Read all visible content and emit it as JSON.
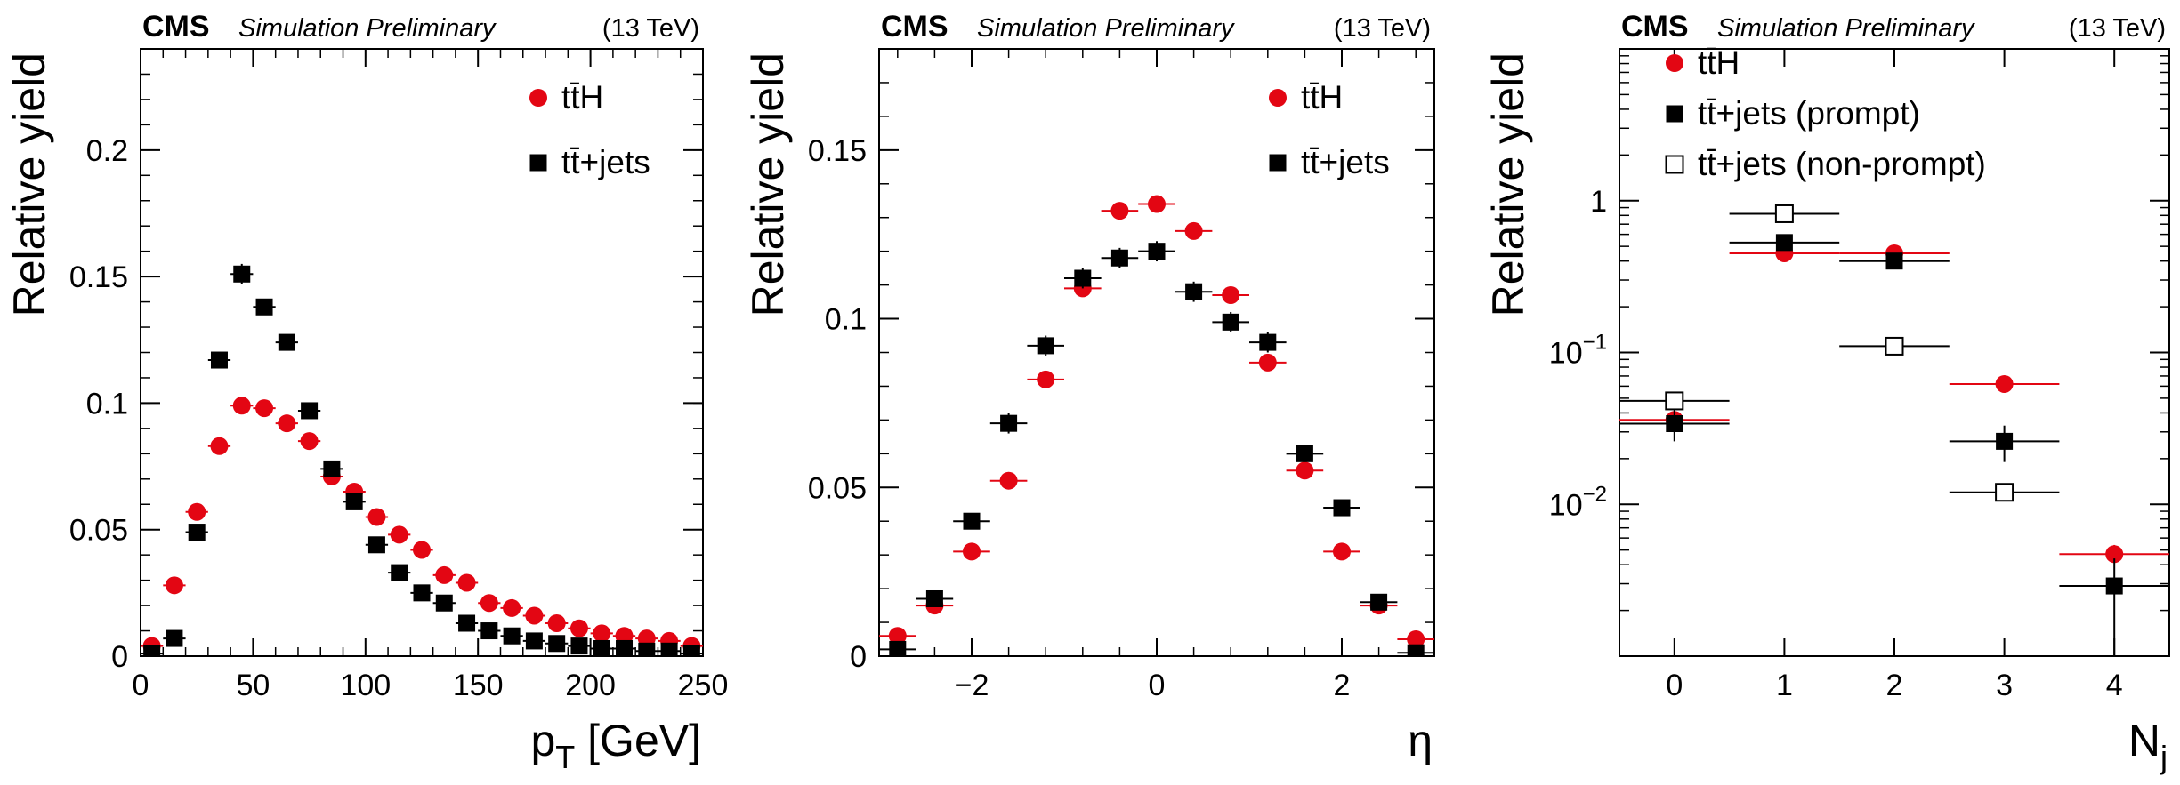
{
  "header": {
    "experiment": "CMS",
    "status": "Simulation Preliminary",
    "energy": "(13 TeV)"
  },
  "colors": {
    "tth": "#e30613",
    "ttjets": "#000000"
  },
  "chart_data": [
    {
      "type": "scatter",
      "id": "pt",
      "title": "",
      "xlabel": "p",
      "xlabel_sub": "T",
      "xlabel_suffix": " [GeV]",
      "ylabel": "Relative yield",
      "xlim": [
        0,
        250
      ],
      "ylim": [
        0,
        0.24
      ],
      "x_ticks": [
        0,
        50,
        100,
        150,
        200,
        250
      ],
      "x_tick_labels": [
        "0",
        "50",
        "100",
        "150",
        "200",
        "250"
      ],
      "y_ticks": [
        0,
        0.05,
        0.1,
        0.15,
        0.2
      ],
      "y_tick_labels": [
        "0",
        "0.05",
        "0.1",
        "0.15",
        "0.2"
      ],
      "log_y": false,
      "legend_position": "top-right",
      "series": [
        {
          "name": "tt̄H",
          "marker": "circle",
          "color": "#e30613",
          "x": [
            5,
            15,
            25,
            35,
            45,
            55,
            65,
            75,
            85,
            95,
            105,
            115,
            125,
            135,
            145,
            155,
            165,
            175,
            185,
            195,
            205,
            215,
            225,
            235,
            245
          ],
          "xerr": [
            5,
            5,
            5,
            5,
            5,
            5,
            5,
            5,
            5,
            5,
            5,
            5,
            5,
            5,
            5,
            5,
            5,
            5,
            5,
            5,
            5,
            5,
            5,
            5,
            5
          ],
          "y": [
            0.004,
            0.028,
            0.057,
            0.083,
            0.099,
            0.098,
            0.092,
            0.085,
            0.071,
            0.065,
            0.055,
            0.048,
            0.042,
            0.032,
            0.029,
            0.021,
            0.019,
            0.016,
            0.013,
            0.011,
            0.009,
            0.008,
            0.007,
            0.006,
            0.004
          ],
          "yerr": [
            0.0005,
            0.001,
            0.001,
            0.001,
            0.001,
            0.001,
            0.001,
            0.001,
            0.001,
            0.001,
            0.001,
            0.001,
            0.001,
            0.001,
            0.001,
            0.001,
            0.001,
            0.001,
            0.001,
            0.001,
            0.001,
            0.001,
            0.001,
            0.001,
            0.001
          ]
        },
        {
          "name": "tt̄+jets",
          "marker": "square",
          "color": "#000000",
          "x": [
            5,
            15,
            25,
            35,
            45,
            55,
            65,
            75,
            85,
            95,
            105,
            115,
            125,
            135,
            145,
            155,
            165,
            175,
            185,
            195,
            205,
            215,
            225,
            235,
            245
          ],
          "xerr": [
            5,
            5,
            5,
            5,
            5,
            5,
            5,
            5,
            5,
            5,
            5,
            5,
            5,
            5,
            5,
            5,
            5,
            5,
            5,
            5,
            5,
            5,
            5,
            5,
            5
          ],
          "y": [
            0.001,
            0.007,
            0.049,
            0.117,
            0.151,
            0.138,
            0.124,
            0.097,
            0.074,
            0.061,
            0.044,
            0.033,
            0.025,
            0.021,
            0.013,
            0.01,
            0.008,
            0.006,
            0.005,
            0.004,
            0.003,
            0.003,
            0.002,
            0.002,
            0.001
          ],
          "yerr": [
            0.001,
            0.002,
            0.003,
            0.003,
            0.004,
            0.003,
            0.003,
            0.003,
            0.003,
            0.003,
            0.002,
            0.002,
            0.002,
            0.002,
            0.001,
            0.001,
            0.001,
            0.001,
            0.001,
            0.001,
            0.001,
            0.001,
            0.001,
            0.001,
            0.001
          ]
        }
      ]
    },
    {
      "type": "scatter",
      "id": "eta",
      "title": "",
      "xlabel": "η",
      "ylabel": "Relative yield",
      "xlim": [
        -3,
        3
      ],
      "ylim": [
        0,
        0.18
      ],
      "x_ticks": [
        -2,
        0,
        2
      ],
      "x_tick_labels": [
        "−2",
        "0",
        "2"
      ],
      "y_ticks": [
        0,
        0.05,
        0.1,
        0.15
      ],
      "y_tick_labels": [
        "0",
        "0.05",
        "0.1",
        "0.15"
      ],
      "log_y": false,
      "legend_position": "top-right",
      "series": [
        {
          "name": "tt̄H",
          "marker": "circle",
          "color": "#e30613",
          "x": [
            -2.8,
            -2.4,
            -2.0,
            -1.6,
            -1.2,
            -0.8,
            -0.4,
            0.0,
            0.4,
            0.8,
            1.2,
            1.6,
            2.0,
            2.4,
            2.8
          ],
          "xerr": [
            0.2,
            0.2,
            0.2,
            0.2,
            0.2,
            0.2,
            0.2,
            0.2,
            0.2,
            0.2,
            0.2,
            0.2,
            0.2,
            0.2,
            0.2
          ],
          "y": [
            0.006,
            0.015,
            0.031,
            0.052,
            0.082,
            0.109,
            0.132,
            0.134,
            0.126,
            0.107,
            0.087,
            0.055,
            0.031,
            0.015,
            0.005
          ],
          "yerr": [
            0.001,
            0.001,
            0.001,
            0.001,
            0.001,
            0.001,
            0.002,
            0.002,
            0.002,
            0.001,
            0.001,
            0.001,
            0.001,
            0.001,
            0.001
          ]
        },
        {
          "name": "tt̄+jets",
          "marker": "square",
          "color": "#000000",
          "x": [
            -2.8,
            -2.4,
            -2.0,
            -1.6,
            -1.2,
            -0.8,
            -0.4,
            0.0,
            0.4,
            0.8,
            1.2,
            1.6,
            2.0,
            2.4,
            2.8
          ],
          "xerr": [
            0.2,
            0.2,
            0.2,
            0.2,
            0.2,
            0.2,
            0.2,
            0.2,
            0.2,
            0.2,
            0.2,
            0.2,
            0.2,
            0.2,
            0.2
          ],
          "y": [
            0.002,
            0.017,
            0.04,
            0.069,
            0.092,
            0.112,
            0.118,
            0.12,
            0.108,
            0.099,
            0.093,
            0.06,
            0.044,
            0.016,
            0.001
          ],
          "yerr": [
            0.001,
            0.002,
            0.002,
            0.003,
            0.003,
            0.003,
            0.003,
            0.003,
            0.003,
            0.003,
            0.003,
            0.002,
            0.002,
            0.002,
            0.001
          ]
        }
      ]
    },
    {
      "type": "scatter",
      "id": "nj",
      "title": "",
      "xlabel": "N",
      "xlabel_sub": "j",
      "xlabel_suffix": "",
      "ylabel": "Relative yield",
      "xlim": [
        -0.5,
        4.5
      ],
      "ylim": [
        0.001,
        10
      ],
      "x_ticks": [
        0,
        1,
        2,
        3,
        4
      ],
      "x_tick_labels": [
        "0",
        "1",
        "2",
        "3",
        "4"
      ],
      "y_ticks": [
        0.01,
        0.1,
        1
      ],
      "y_tick_labels": [
        {
          "base": "10",
          "exp": "−2"
        },
        {
          "base": "10",
          "exp": "−1"
        },
        {
          "base": "1",
          "exp": ""
        }
      ],
      "log_y": true,
      "legend_position": "top-right",
      "series": [
        {
          "name": "tt̄H",
          "marker": "circle",
          "color": "#e30613",
          "x": [
            0,
            1,
            2,
            3,
            4
          ],
          "xerr": [
            0.5,
            0.5,
            0.5,
            0.5,
            0.5
          ],
          "y": [
            0.036,
            0.45,
            0.45,
            0.062,
            0.0047
          ],
          "yerr_low": [
            0.002,
            0.01,
            0.01,
            0.002,
            0.0005
          ],
          "yerr_high": [
            0.002,
            0.01,
            0.01,
            0.002,
            0.0007
          ]
        },
        {
          "name": "tt̄+jets (prompt)",
          "marker": "square",
          "color": "#000000",
          "x": [
            0,
            1,
            2,
            3,
            4
          ],
          "xerr": [
            0.5,
            0.5,
            0.5,
            0.5,
            0.5
          ],
          "y": [
            0.034,
            0.53,
            0.4,
            0.026,
            0.0029
          ],
          "yerr_low": [
            0.008,
            0.03,
            0.02,
            0.007,
            0.0028
          ],
          "yerr_high": [
            0.008,
            0.03,
            0.02,
            0.007,
            0.0015
          ]
        },
        {
          "name": "tt̄+jets (non-prompt)",
          "marker": "open-square",
          "color": "#000000",
          "x": [
            0,
            1,
            2,
            3
          ],
          "xerr": [
            0.5,
            0.5,
            0.5,
            0.5
          ],
          "y": [
            0.048,
            0.82,
            0.11,
            0.012
          ],
          "yerr_low": [
            0.004,
            0.03,
            0.008,
            0.0015
          ],
          "yerr_high": [
            0.004,
            0.03,
            0.008,
            0.0015
          ]
        }
      ]
    }
  ]
}
